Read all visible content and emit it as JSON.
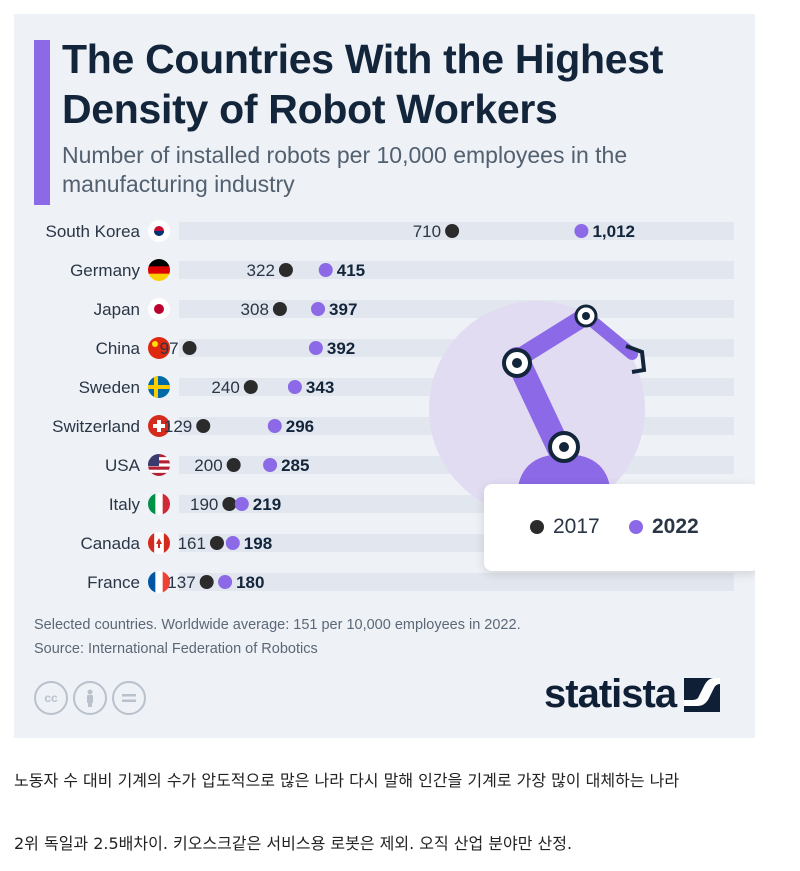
{
  "title": "The Countries With the Highest Density of Robot Workers",
  "subtitle": "Number of installed robots per 10,000 employees in the manufacturing industry",
  "legend": {
    "label_2017": "2017",
    "label_2022": "2022"
  },
  "colors": {
    "dot_2017": "#2b2b2b",
    "dot_2022": "#8c69e6",
    "accent": "#8c69e6",
    "row_band": "#e2e6ee"
  },
  "chart_data": {
    "type": "dumbbell",
    "categories": [
      "South Korea",
      "Germany",
      "Japan",
      "China",
      "Sweden",
      "Switzerland",
      "USA",
      "Italy",
      "Canada",
      "France"
    ],
    "flags": [
      "south-korea-flag",
      "germany-flag",
      "japan-flag",
      "china-flag",
      "sweden-flag",
      "switzerland-flag",
      "usa-flag",
      "italy-flag",
      "canada-flag",
      "france-flag"
    ],
    "series": [
      {
        "name": "2017",
        "values": [
          710,
          322,
          308,
          97,
          240,
          129,
          200,
          190,
          161,
          137
        ],
        "labels": [
          "710",
          "322",
          "308",
          "97",
          "240",
          "129",
          "200",
          "190",
          "161",
          "137"
        ]
      },
      {
        "name": "2022",
        "values": [
          1012,
          415,
          397,
          392,
          343,
          296,
          285,
          219,
          198,
          180
        ],
        "labels": [
          "1,012",
          "415",
          "397",
          "392",
          "343",
          "296",
          "285",
          "219",
          "198",
          "180"
        ]
      }
    ],
    "xlim": [
      0,
      1012
    ],
    "grid": false,
    "legend_position": "right"
  },
  "footer": {
    "note": "Selected countries. Worldwide average: 151 per 10,000 employees in 2022.",
    "source": "Source: International Federation of Robotics",
    "license_icons": [
      "cc-icon",
      "attribution-icon",
      "no-derivatives-icon"
    ],
    "brand": "statista"
  },
  "caption": {
    "line1": "노동자 수 대비 기계의 수가 압도적으로 많은 나라 다시 말해 인간을 기계로 가장 많이 대체하는 나라",
    "line2": "2위 독일과 2.5배차이. 키오스크같은 서비스용 로봇은 제외. 오직 산업 분야만 산정."
  }
}
